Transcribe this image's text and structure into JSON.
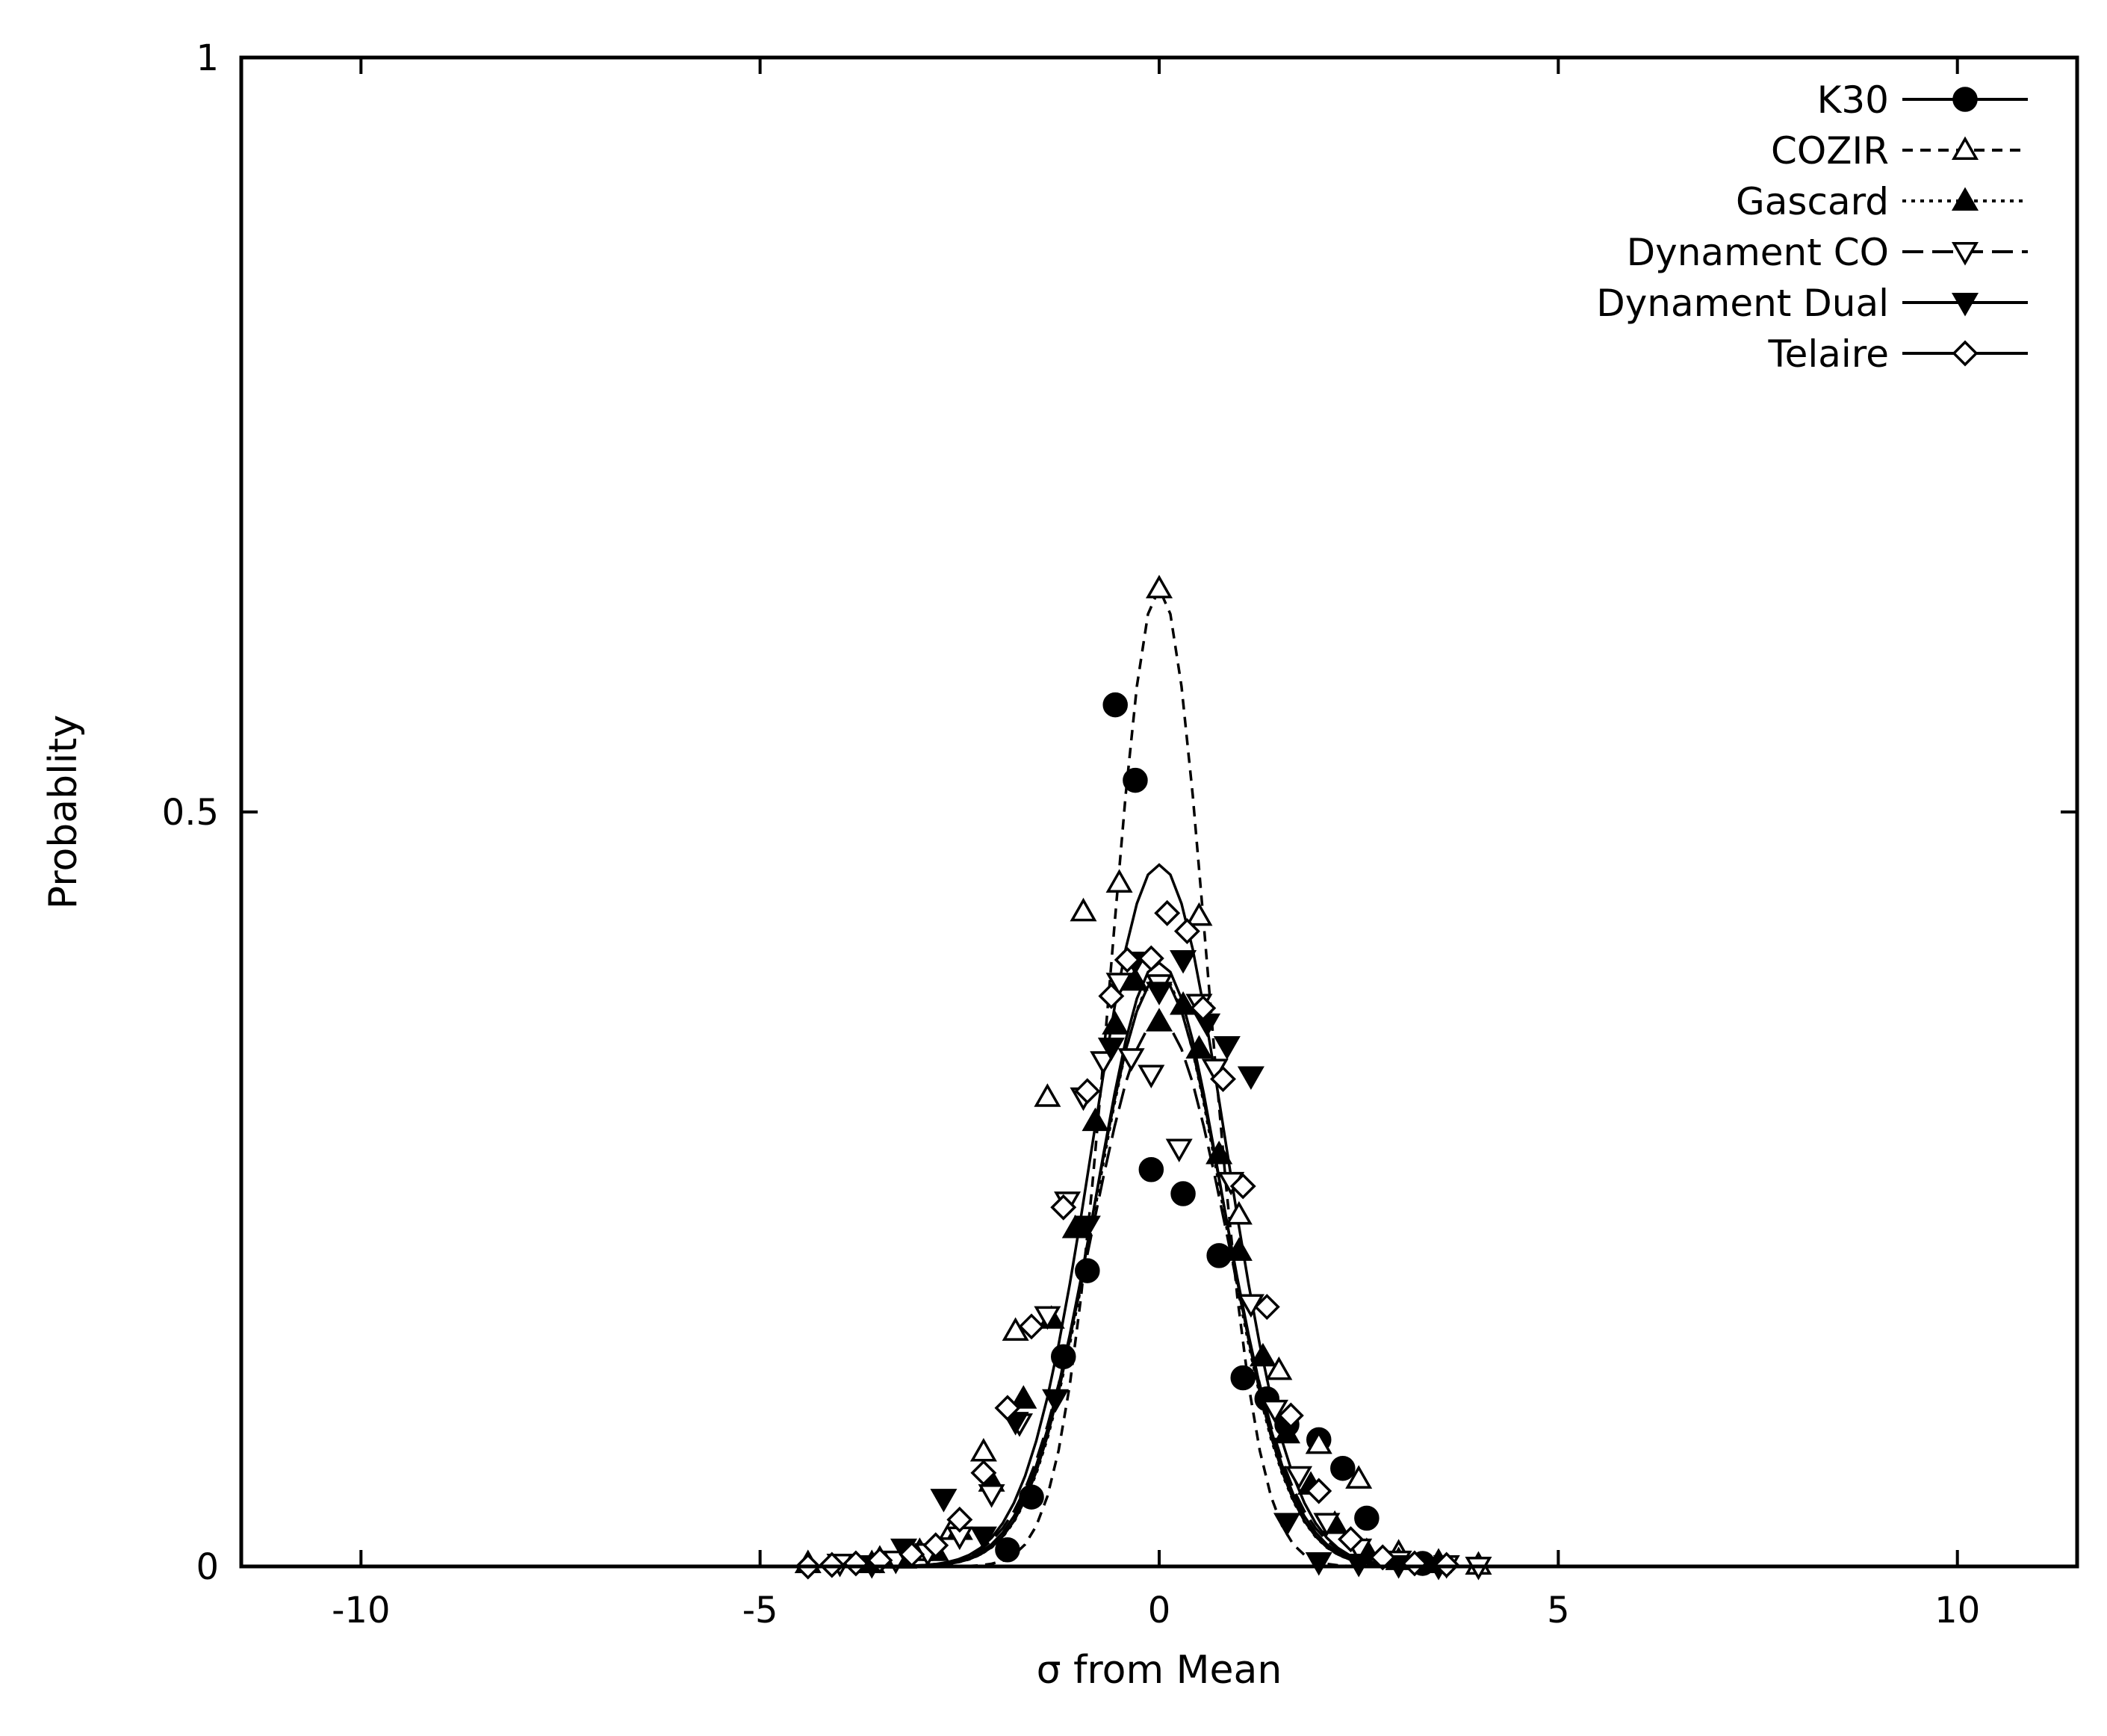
{
  "chart_data": {
    "type": "scatter",
    "title": "",
    "xlabel": "σ from Mean",
    "ylabel": "Probablity",
    "xlim": [
      -11.5,
      11.5
    ],
    "ylim": [
      0,
      1
    ],
    "x_ticks": [
      {
        "value": -10,
        "label": "-10"
      },
      {
        "value": -5,
        "label": "-5"
      },
      {
        "value": 0,
        "label": "0"
      },
      {
        "value": 5,
        "label": "5"
      },
      {
        "value": 10,
        "label": "10"
      }
    ],
    "y_ticks": [
      {
        "value": 0,
        "label": "0"
      },
      {
        "value": 0.5,
        "label": "0.5"
      },
      {
        "value": 1,
        "label": "1"
      }
    ],
    "grid": false,
    "legend_position": "top-right",
    "series": [
      {
        "name": "K30",
        "marker": "filled-circle",
        "line": "solid",
        "color": "#000000",
        "fit_peak": 0.465,
        "fit_sigma": 0.83,
        "points": [
          [
            -1.9,
            0.011
          ],
          [
            -1.6,
            0.046
          ],
          [
            -1.2,
            0.139
          ],
          [
            -0.9,
            0.196
          ],
          [
            -0.55,
            0.571
          ],
          [
            -0.3,
            0.521
          ],
          [
            -0.1,
            0.263
          ],
          [
            0.3,
            0.247
          ],
          [
            0.75,
            0.206
          ],
          [
            1.05,
            0.125
          ],
          [
            1.35,
            0.111
          ],
          [
            1.6,
            0.094
          ],
          [
            2.0,
            0.084
          ],
          [
            2.3,
            0.065
          ],
          [
            2.6,
            0.032
          ],
          [
            3.3,
            0.002
          ]
        ]
      },
      {
        "name": "COZIR",
        "marker": "open-triangle-up",
        "line": "dashed",
        "color": "#000000",
        "fit_peak": 0.648,
        "fit_sigma": 0.61,
        "points": [
          [
            -4.4,
            0.002
          ],
          [
            -3.5,
            0.005
          ],
          [
            -3.0,
            0.01
          ],
          [
            -2.6,
            0.024
          ],
          [
            -2.2,
            0.076
          ],
          [
            -1.8,
            0.156
          ],
          [
            -1.4,
            0.311
          ],
          [
            -0.95,
            0.434
          ],
          [
            -0.5,
            0.453
          ],
          [
            0.0,
            0.648
          ],
          [
            0.5,
            0.431
          ],
          [
            1.0,
            0.233
          ],
          [
            1.5,
            0.13
          ],
          [
            2.0,
            0.081
          ],
          [
            2.5,
            0.058
          ],
          [
            3.0,
            0.009
          ],
          [
            3.5,
            0.003
          ],
          [
            4.0,
            0.001
          ]
        ]
      },
      {
        "name": "Gascard",
        "marker": "filled-triangle-up",
        "line": "dotted",
        "color": "#000000",
        "fit_peak": 0.392,
        "fit_sigma": 0.8,
        "points": [
          [
            -3.6,
            0.002
          ],
          [
            -3.2,
            0.005
          ],
          [
            -2.8,
            0.01
          ],
          [
            -2.5,
            0.024
          ],
          [
            -2.1,
            0.056
          ],
          [
            -1.7,
            0.111
          ],
          [
            -1.35,
            0.164
          ],
          [
            -1.05,
            0.224
          ],
          [
            -0.8,
            0.295
          ],
          [
            -0.55,
            0.359
          ],
          [
            -0.3,
            0.388
          ],
          [
            0.0,
            0.361
          ],
          [
            0.3,
            0.372
          ],
          [
            0.5,
            0.343
          ],
          [
            0.75,
            0.273
          ],
          [
            1.0,
            0.209
          ],
          [
            1.3,
            0.139
          ],
          [
            1.6,
            0.088
          ],
          [
            1.9,
            0.054
          ],
          [
            2.2,
            0.028
          ],
          [
            2.6,
            0.01
          ],
          [
            3.0,
            0.004
          ],
          [
            3.5,
            0.002
          ]
        ]
      },
      {
        "name": "Dynament CO",
        "marker": "open-triangle-down",
        "line": "long-dashed",
        "color": "#000000",
        "fit_peak": 0.362,
        "fit_sigma": 0.85,
        "points": [
          [
            -4.0,
            0.002
          ],
          [
            -3.3,
            0.004
          ],
          [
            -2.9,
            0.009
          ],
          [
            -2.5,
            0.02
          ],
          [
            -2.1,
            0.048
          ],
          [
            -1.75,
            0.095
          ],
          [
            -1.4,
            0.166
          ],
          [
            -1.15,
            0.242
          ],
          [
            -0.95,
            0.311
          ],
          [
            -0.7,
            0.335
          ],
          [
            -0.5,
            0.387
          ],
          [
            -0.35,
            0.337
          ],
          [
            -0.1,
            0.326
          ],
          [
            0.0,
            0.386
          ],
          [
            0.25,
            0.277
          ],
          [
            0.5,
            0.373
          ],
          [
            0.7,
            0.33
          ],
          [
            0.9,
            0.255
          ],
          [
            1.15,
            0.174
          ],
          [
            1.45,
            0.104
          ],
          [
            1.75,
            0.06
          ],
          [
            2.1,
            0.029
          ],
          [
            2.5,
            0.012
          ],
          [
            3.0,
            0.004
          ],
          [
            3.6,
            0.001
          ],
          [
            4.0,
            0.0
          ]
        ]
      },
      {
        "name": "Dynament Dual",
        "marker": "filled-triangle-down",
        "line": "solid",
        "color": "#000000",
        "fit_peak": 0.39,
        "fit_sigma": 0.82,
        "points": [
          [
            -3.6,
            0.001
          ],
          [
            -3.2,
            0.012
          ],
          [
            -2.7,
            0.045
          ],
          [
            -2.2,
            0.02
          ],
          [
            -1.8,
            0.096
          ],
          [
            -1.3,
            0.111
          ],
          [
            -0.9,
            0.226
          ],
          [
            -0.6,
            0.344
          ],
          [
            -0.3,
            0.401
          ],
          [
            0.0,
            0.381
          ],
          [
            0.3,
            0.402
          ],
          [
            0.6,
            0.36
          ],
          [
            0.85,
            0.345
          ],
          [
            1.15,
            0.325
          ],
          [
            1.6,
            0.029
          ],
          [
            2.0,
            0.003
          ],
          [
            2.5,
            0.002
          ],
          [
            3.0,
            0.001
          ],
          [
            3.5,
            0.0
          ]
        ]
      },
      {
        "name": "Telaire",
        "marker": "open-diamond",
        "line": "solid",
        "color": "#000000",
        "fit_peak": 0.4,
        "fit_sigma": 0.8,
        "points": [
          [
            -4.4,
            0.0
          ],
          [
            -4.1,
            0.001
          ],
          [
            -3.8,
            0.002
          ],
          [
            -3.5,
            0.004
          ],
          [
            -3.1,
            0.008
          ],
          [
            -2.8,
            0.014
          ],
          [
            -2.5,
            0.031
          ],
          [
            -2.2,
            0.062
          ],
          [
            -1.9,
            0.105
          ],
          [
            -1.6,
            0.159
          ],
          [
            -1.2,
            0.238
          ],
          [
            -0.9,
            0.315
          ],
          [
            -0.6,
            0.378
          ],
          [
            -0.4,
            0.402
          ],
          [
            -0.1,
            0.403
          ],
          [
            0.1,
            0.433
          ],
          [
            0.35,
            0.421
          ],
          [
            0.55,
            0.37
          ],
          [
            0.8,
            0.323
          ],
          [
            1.05,
            0.252
          ],
          [
            1.35,
            0.172
          ],
          [
            1.65,
            0.1
          ],
          [
            2.0,
            0.05
          ],
          [
            2.4,
            0.018
          ],
          [
            2.8,
            0.006
          ],
          [
            3.2,
            0.002
          ],
          [
            3.6,
            0.001
          ]
        ]
      }
    ]
  }
}
